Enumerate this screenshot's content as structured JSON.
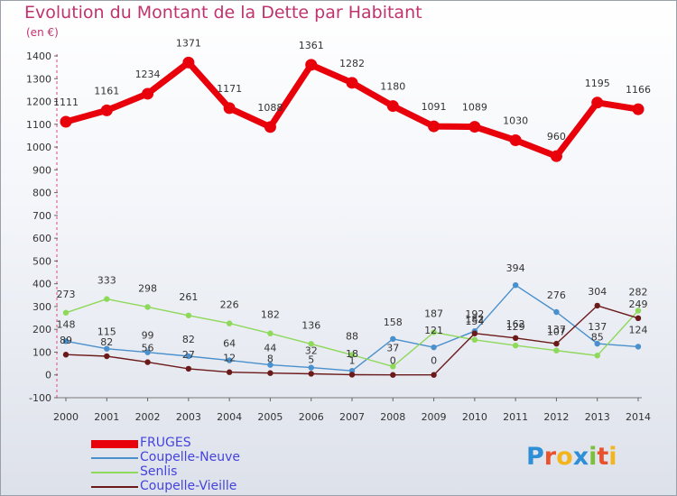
{
  "title": "Evolution du Montant de la Dette par Habitant",
  "unit_label": "(en €)",
  "logo_text": "Proxiti",
  "logo_colors": [
    "#2e8fd6",
    "#e8532e",
    "#f2b51e",
    "#2e8fd6",
    "#7bbf3b",
    "#e8532e",
    "#f2b51e"
  ],
  "chart_data": {
    "type": "line",
    "x": [
      "2000",
      "2001",
      "2002",
      "2003",
      "2004",
      "2005",
      "2006",
      "2007",
      "2008",
      "2009",
      "2010",
      "2011",
      "2012",
      "2013",
      "2014"
    ],
    "ylim": [
      -100,
      1400
    ],
    "yticks": [
      -100,
      0,
      100,
      200,
      300,
      400,
      500,
      600,
      700,
      800,
      900,
      1000,
      1100,
      1200,
      1300,
      1400
    ],
    "grid": false,
    "legend_position": "bottom-left",
    "series": [
      {
        "name": "FRUGES",
        "color": "#e8000b",
        "values": [
          1111,
          1161,
          1234,
          1371,
          1171,
          1088,
          1361,
          1282,
          1180,
          1091,
          1089,
          1030,
          960,
          1195,
          1166
        ],
        "labels": [
          "1111",
          "1161",
          "1234",
          "1371",
          "1171",
          "1088",
          "1361",
          "1282",
          "1180",
          "1091",
          "1089",
          "1030",
          "960",
          "1195",
          "1166"
        ]
      },
      {
        "name": "Coupelle-Neuve",
        "color": "#4a90cc",
        "values": [
          148,
          115,
          99,
          82,
          64,
          44,
          32,
          18,
          158,
          121,
          192,
          394,
          276,
          137,
          124
        ],
        "labels": [
          "148",
          "115",
          "99",
          "82",
          "64",
          "44",
          "32",
          "18",
          "158",
          "121",
          "192",
          "394",
          "276",
          "137",
          "124"
        ]
      },
      {
        "name": "Senlis",
        "color": "#8ed85a",
        "values": [
          273,
          333,
          298,
          261,
          226,
          182,
          136,
          88,
          37,
          187,
          154,
          129,
          107,
          85,
          282
        ],
        "labels": [
          "273",
          "333",
          "298",
          "261",
          "226",
          "182",
          "136",
          "88",
          "37",
          "187",
          "154",
          "129",
          "107",
          "85",
          "282"
        ]
      },
      {
        "name": "Coupelle-Vieille",
        "color": "#6b1a1a",
        "values": [
          89,
          82,
          56,
          27,
          12,
          8,
          5,
          1,
          0,
          0,
          182,
          162,
          137,
          304,
          249
        ],
        "labels": [
          "89",
          "82",
          "56",
          "27",
          "12",
          "8",
          "5",
          "1",
          "0",
          "0",
          "182",
          "162",
          "137",
          "304",
          "249"
        ]
      }
    ]
  }
}
